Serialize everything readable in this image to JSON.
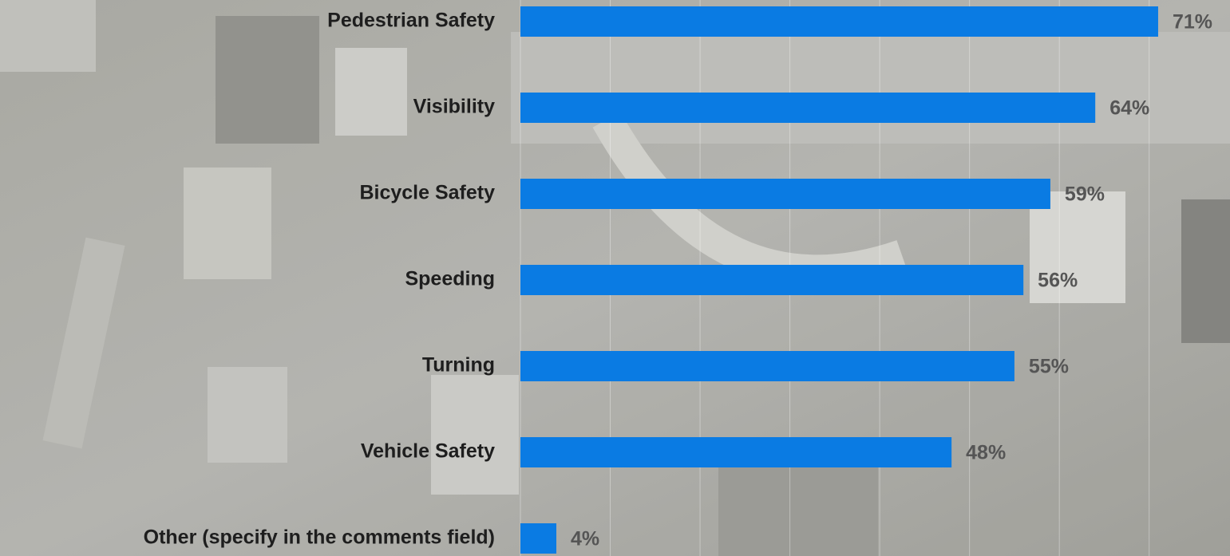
{
  "chart_data": {
    "type": "bar",
    "orientation": "horizontal",
    "categories": [
      "Pedestrian Safety",
      "Visibility",
      "Bicycle Safety",
      "Speeding",
      "Turning",
      "Vehicle Safety",
      "Other (specify in the comments field)"
    ],
    "values": [
      71,
      64,
      59,
      56,
      55,
      48,
      4
    ],
    "value_labels": [
      "71%",
      "64%",
      "59%",
      "56%",
      "55%",
      "48%",
      "4%"
    ],
    "color": "#0a7be3",
    "xlim": [
      0,
      79
    ],
    "xticks": [
      0,
      10,
      20,
      30,
      40,
      50,
      60,
      70
    ],
    "grid": true
  }
}
